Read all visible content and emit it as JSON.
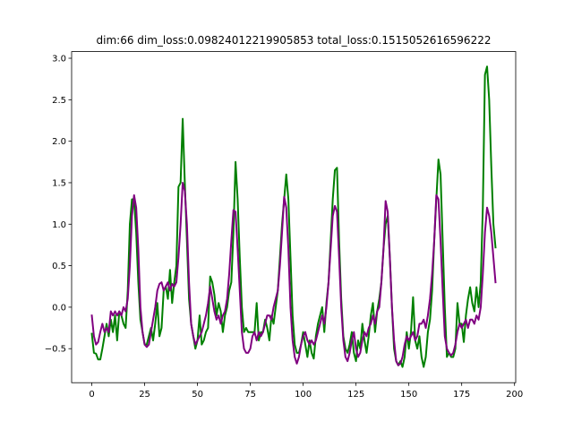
{
  "chart_data": {
    "type": "line",
    "title": "dim:66 dim_loss:0.09824012219905853 total_loss:0.1515052616596222",
    "x": [
      0,
      1,
      2,
      3,
      4,
      5,
      6,
      7,
      8,
      9,
      10,
      11,
      12,
      13,
      14,
      15,
      16,
      17,
      18,
      19,
      20,
      21,
      22,
      23,
      24,
      25,
      26,
      27,
      28,
      29,
      30,
      31,
      32,
      33,
      34,
      35,
      36,
      37,
      38,
      39,
      40,
      41,
      42,
      43,
      44,
      45,
      46,
      47,
      48,
      49,
      50,
      51,
      52,
      53,
      54,
      55,
      56,
      57,
      58,
      59,
      60,
      61,
      62,
      63,
      64,
      65,
      66,
      67,
      68,
      69,
      70,
      71,
      72,
      73,
      74,
      75,
      76,
      77,
      78,
      79,
      80,
      81,
      82,
      83,
      84,
      85,
      86,
      87,
      88,
      89,
      90,
      91,
      92,
      93,
      94,
      95,
      96,
      97,
      98,
      99,
      100,
      101,
      102,
      103,
      104,
      105,
      106,
      107,
      108,
      109,
      110,
      111,
      112,
      113,
      114,
      115,
      116,
      117,
      118,
      119,
      120,
      121,
      122,
      123,
      124,
      125,
      126,
      127,
      128,
      129,
      130,
      131,
      132,
      133,
      134,
      135,
      136,
      137,
      138,
      139,
      140,
      141,
      142,
      143,
      144,
      145,
      146,
      147,
      148,
      149,
      150,
      151,
      152,
      153,
      154,
      155,
      156,
      157,
      158,
      159,
      160,
      161,
      162,
      163,
      164,
      165,
      166,
      167,
      168,
      169,
      170,
      171,
      172,
      173,
      174,
      175,
      176,
      177,
      178,
      179,
      180,
      181,
      182,
      183,
      184,
      185,
      186,
      187,
      188,
      189,
      190,
      191
    ],
    "series": [
      {
        "color": "#008000",
        "values": [
          -0.32,
          -0.55,
          -0.56,
          -0.63,
          -0.63,
          -0.5,
          -0.35,
          -0.2,
          -0.35,
          -0.15,
          -0.3,
          -0.1,
          -0.4,
          -0.05,
          -0.1,
          -0.2,
          -0.25,
          0.2,
          1.0,
          1.3,
          1.3,
          0.9,
          0.3,
          -0.15,
          -0.3,
          -0.45,
          -0.45,
          -0.35,
          -0.25,
          -0.4,
          -0.2,
          0.05,
          -0.35,
          -0.25,
          0.2,
          0.25,
          0.1,
          0.45,
          0.05,
          0.3,
          0.5,
          1.45,
          1.5,
          2.27,
          1.5,
          0.8,
          0.1,
          -0.2,
          -0.35,
          -0.5,
          -0.4,
          -0.1,
          -0.45,
          -0.4,
          -0.3,
          -0.25,
          0.37,
          0.3,
          0.15,
          -0.1,
          0.05,
          -0.05,
          -0.3,
          -0.1,
          0.0,
          0.2,
          0.3,
          0.9,
          1.75,
          1.3,
          0.6,
          0.0,
          -0.3,
          -0.25,
          -0.3,
          -0.3,
          -0.3,
          -0.3,
          0.05,
          -0.4,
          -0.3,
          -0.3,
          -0.15,
          -0.25,
          -0.4,
          -0.1,
          -0.2,
          0.0,
          0.2,
          0.6,
          1.0,
          1.3,
          1.6,
          1.3,
          0.6,
          -0.1,
          -0.45,
          -0.55,
          -0.55,
          -0.45,
          -0.3,
          -0.45,
          -0.6,
          -0.4,
          -0.55,
          -0.62,
          -0.35,
          -0.2,
          -0.1,
          0.0,
          -0.3,
          0.05,
          0.3,
          0.8,
          1.3,
          1.65,
          1.68,
          0.8,
          0.1,
          -0.35,
          -0.5,
          -0.55,
          -0.45,
          -0.3,
          -0.55,
          -0.65,
          -0.4,
          -0.5,
          -0.2,
          -0.4,
          -0.55,
          -0.35,
          -0.1,
          0.05,
          -0.3,
          -0.05,
          0.1,
          0.3,
          0.7,
          1.0,
          1.1,
          0.6,
          0.0,
          -0.5,
          -0.65,
          -0.7,
          -0.65,
          -0.72,
          -0.6,
          -0.3,
          -0.5,
          -0.3,
          0.12,
          -0.4,
          -0.5,
          -0.35,
          -0.6,
          -0.72,
          -0.6,
          -0.3,
          -0.15,
          0.2,
          0.8,
          1.3,
          1.78,
          1.6,
          0.8,
          0.0,
          -0.6,
          -0.55,
          -0.6,
          -0.6,
          -0.5,
          0.05,
          -0.2,
          -0.2,
          -0.42,
          -0.1,
          0.1,
          0.24,
          0.05,
          -0.05,
          0.24,
          0.0,
          0.3,
          1.2,
          2.8,
          2.9,
          2.5,
          1.7,
          1.0,
          0.72
        ]
      },
      {
        "color": "#800080",
        "values": [
          -0.1,
          -0.35,
          -0.45,
          -0.42,
          -0.3,
          -0.2,
          -0.3,
          -0.25,
          -0.3,
          -0.05,
          -0.1,
          -0.05,
          -0.1,
          -0.05,
          -0.1,
          0.0,
          -0.05,
          0.1,
          0.5,
          1.1,
          1.35,
          1.2,
          0.7,
          0.0,
          -0.3,
          -0.45,
          -0.48,
          -0.45,
          -0.3,
          -0.15,
          0.0,
          0.2,
          0.28,
          0.3,
          0.2,
          0.25,
          0.3,
          0.2,
          0.28,
          0.25,
          0.3,
          0.6,
          1.0,
          1.5,
          1.4,
          1.0,
          0.3,
          -0.2,
          -0.35,
          -0.45,
          -0.4,
          -0.35,
          -0.3,
          -0.2,
          -0.1,
          0.05,
          0.25,
          0.1,
          -0.05,
          -0.15,
          -0.1,
          -0.2,
          -0.1,
          -0.05,
          0.1,
          0.4,
          0.8,
          1.17,
          1.15,
          0.7,
          0.2,
          -0.3,
          -0.5,
          -0.55,
          -0.55,
          -0.5,
          -0.35,
          -0.3,
          -0.4,
          -0.3,
          -0.35,
          -0.3,
          -0.2,
          -0.1,
          -0.1,
          -0.15,
          0.0,
          0.1,
          0.2,
          0.5,
          0.9,
          1.33,
          1.2,
          0.7,
          0.0,
          -0.4,
          -0.6,
          -0.68,
          -0.6,
          -0.45,
          -0.35,
          -0.3,
          -0.4,
          -0.45,
          -0.4,
          -0.45,
          -0.4,
          -0.3,
          -0.2,
          -0.1,
          -0.2,
          0.0,
          0.3,
          0.7,
          1.1,
          1.22,
          1.15,
          0.6,
          0.0,
          -0.4,
          -0.6,
          -0.65,
          -0.55,
          -0.4,
          -0.3,
          -0.5,
          -0.6,
          -0.55,
          -0.4,
          -0.3,
          -0.35,
          -0.25,
          -0.2,
          -0.1,
          -0.2,
          -0.05,
          0.0,
          0.3,
          0.7,
          1.28,
          1.15,
          0.6,
          0.0,
          -0.4,
          -0.65,
          -0.7,
          -0.68,
          -0.6,
          -0.45,
          -0.35,
          -0.4,
          -0.35,
          -0.3,
          -0.4,
          -0.35,
          -0.2,
          -0.2,
          -0.15,
          -0.25,
          -0.1,
          0.1,
          0.4,
          0.8,
          1.35,
          1.3,
          0.8,
          0.2,
          -0.35,
          -0.5,
          -0.55,
          -0.58,
          -0.55,
          -0.45,
          -0.3,
          -0.2,
          -0.25,
          -0.2,
          -0.15,
          -0.25,
          -0.15,
          -0.15,
          -0.2,
          -0.1,
          -0.15,
          0.0,
          0.4,
          0.9,
          1.2,
          1.1,
          0.9,
          0.6,
          0.3
        ]
      }
    ],
    "xlim": [
      -9.55,
      200.55
    ],
    "ylim": [
      -0.91,
      3.08
    ],
    "xticks": [
      0,
      25,
      50,
      75,
      100,
      125,
      150,
      175,
      200
    ],
    "yticks": [
      {
        "value": -0.5,
        "label": "−0.5"
      },
      {
        "value": 0,
        "label": "0.0"
      },
      0.5,
      {
        "value": 1,
        "label": "1.0"
      },
      1.5,
      {
        "value": 2,
        "label": "2.0"
      },
      2.5,
      {
        "value": 3,
        "label": "3.0"
      }
    ],
    "grid": false
  }
}
